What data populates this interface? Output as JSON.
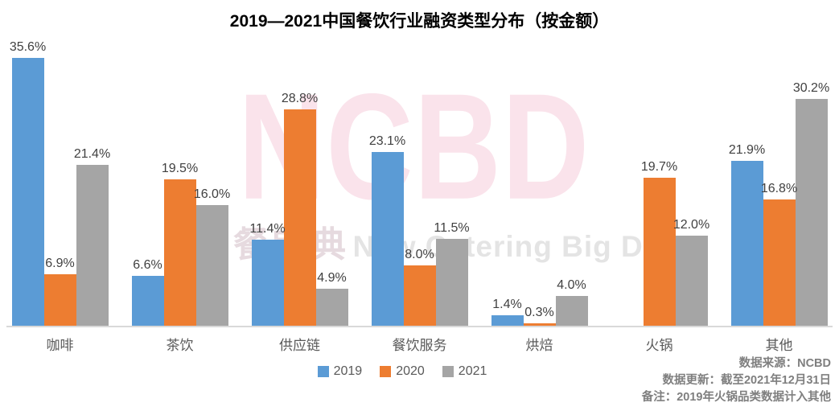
{
  "title": "2019—2021中国餐饮行业融资类型分布（按金额）",
  "watermark": {
    "main": "NCBD",
    "sub_cn": "餐宝典",
    "sub_en": "New Catering Big Data"
  },
  "chart_data": {
    "type": "bar",
    "title": "2019—2021中国餐饮行业融资类型分布（按金额）",
    "categories": [
      "咖啡",
      "茶饮",
      "供应链",
      "餐饮服务",
      "烘焙",
      "火锅",
      "其他"
    ],
    "series": [
      {
        "name": "2019",
        "color": "#5B9BD5",
        "values": [
          35.6,
          6.6,
          11.4,
          23.1,
          1.4,
          null,
          21.9
        ]
      },
      {
        "name": "2020",
        "color": "#ED7D31",
        "values": [
          6.9,
          19.5,
          28.8,
          8.0,
          0.3,
          19.7,
          16.8
        ]
      },
      {
        "name": "2021",
        "color": "#A5A5A5",
        "values": [
          21.4,
          16.0,
          4.9,
          11.5,
          4.0,
          12.0,
          30.2
        ]
      }
    ],
    "value_format": "0.0%",
    "xlabel": "",
    "ylabel": "",
    "ylim": [
      0,
      40
    ],
    "grid": false,
    "legend_position": "bottom"
  },
  "footer": {
    "source": "数据来源：NCBD",
    "update": "数据更新：截至2021年12月31日",
    "note": "备注：2019年火锅品类数据计入其他"
  }
}
